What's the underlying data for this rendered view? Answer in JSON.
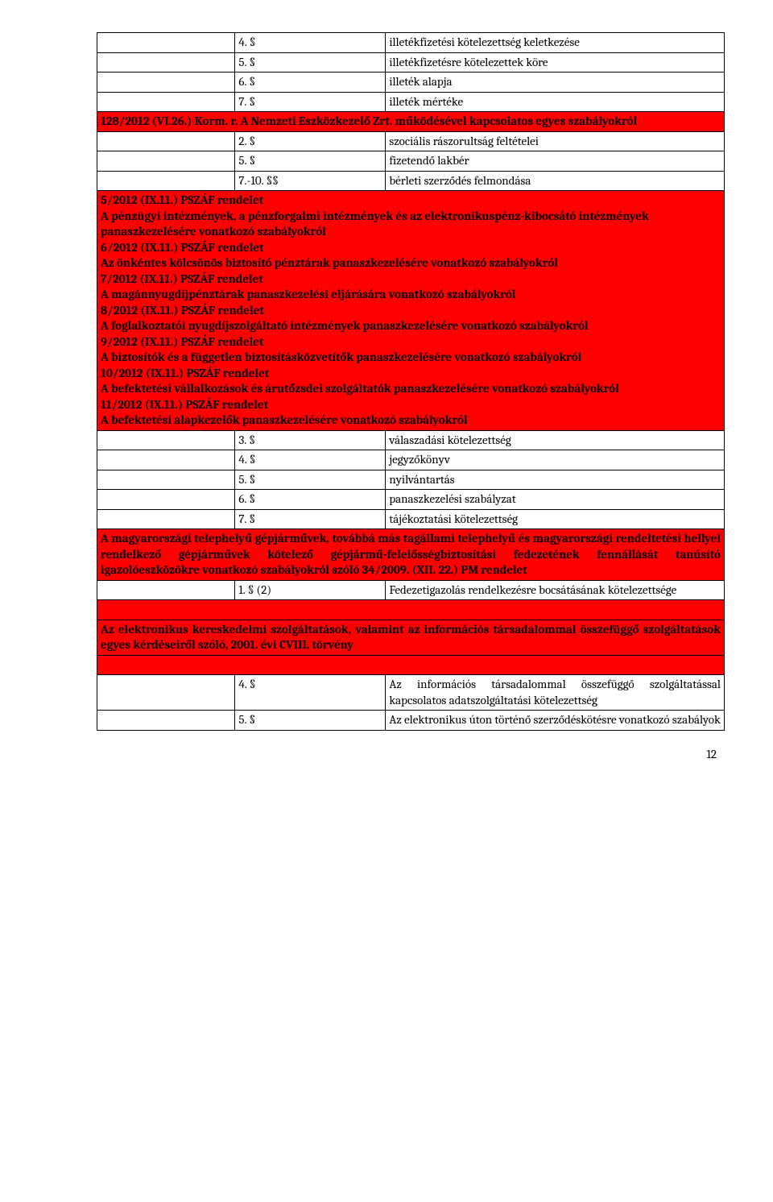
{
  "rows_top": [
    {
      "n": "4. §",
      "t": "illetékfizetési kötelezettség keletkezése"
    },
    {
      "n": "5. §",
      "t": "illetékfizetésre kötelezettek köre"
    },
    {
      "n": "6. §",
      "t": "illeték alapja"
    },
    {
      "n": "7. §",
      "t": "illeték mértéke"
    }
  ],
  "header1": "128/2012 (VI.26.) Korm. r. A Nemzeti Eszközkezelő Zrt. működésével kapcsolatos egyes szabályokról",
  "rows_mid1": [
    {
      "n": "2. §",
      "t": "szociális rászorultság feltételei"
    },
    {
      "n": "5. §",
      "t": "fizetendő lakbér"
    },
    {
      "n": "7.-10. §§",
      "t": "bérleti szerződés felmondása"
    }
  ],
  "header2_lines": [
    "5/2012 (IX.11.) PSZÁF rendelet",
    "A pénzügyi intézmények, a pénzforgalmi intézmények és az elektronikuspénz-kibocsátó intézmények panaszkezelésére vonatkozó szabályokról",
    "6/2012 (IX.11.) PSZÁF rendelet",
    "Az önkéntes kölcsönös biztosító pénztárak panaszkezelésére vonatkozó szabályokról",
    "7/2012 (IX.11.) PSZÁF rendelet",
    "A magánnyugdíjpénztárak panaszkezelési eljárására vonatkozó szabályokról",
    "8/2012 (IX.11.) PSZÁF rendelet",
    "A foglalkoztatói nyugdíjszolgáltató intézmények panaszkezelésére vonatkozó szabályokról",
    "9/2012 (IX.11.) PSZÁF rendelet",
    "A biztosítók és a független biztosításközvetítők panaszkezelésére vonatkozó szabályokról",
    "10/2012 (IX.11.) PSZÁF rendelet",
    "A befektetési vállalkozások és árutőzsdei szolgáltatók panaszkezelésére vonatkozó szabályokról",
    "11/2012 (IX.11.) PSZÁF rendelet",
    "A befektetési alapkezelők panaszkezelésére vonatkozó szabályokról"
  ],
  "rows_mid2": [
    {
      "n": "3. §",
      "t": "válaszadási kötelezettség"
    },
    {
      "n": "4. §",
      "t": "jegyzőkönyv"
    },
    {
      "n": "5. §",
      "t": "nyilvántartás"
    },
    {
      "n": "6. §",
      "t": "panaszkezelési szabályzat"
    },
    {
      "n": "7. §",
      "t": "tájékoztatási kötelezettség"
    }
  ],
  "header3": "A magyarországi telephelyű gépjárművek, továbbá más tagállami telephelyű és magyarországi rendeltetési hellyel rendelkező gépjárművek kötelező gépjármű-felelősségbiztosítási fedezetének fennállását tanúsító igazolóeszközökre vonatkozó szabályokról szóló 34/2009. (XII. 22.) PM rendelet",
  "row_single": {
    "n": "1. § (2)",
    "t": "Fedezetigazolás rendelkezésre bocsátásának kötelezettsége"
  },
  "header4": "Az elektronikus kereskedelmi szolgáltatások, valamint az információs társadalommal összefüggő szolgáltatások egyes kérdéseiről szóló, 2001. évi CVIII. törvény",
  "rows_bot": [
    {
      "n": "4. §",
      "t": "Az információs társadalommal összefüggő szolgáltatással kapcsolatos adatszolgáltatási kötelezettség"
    },
    {
      "n": "5. §",
      "t": "Az elektronikus úton történő szerződéskötésre vonatkozó szabályok"
    }
  ],
  "page_number": "12"
}
